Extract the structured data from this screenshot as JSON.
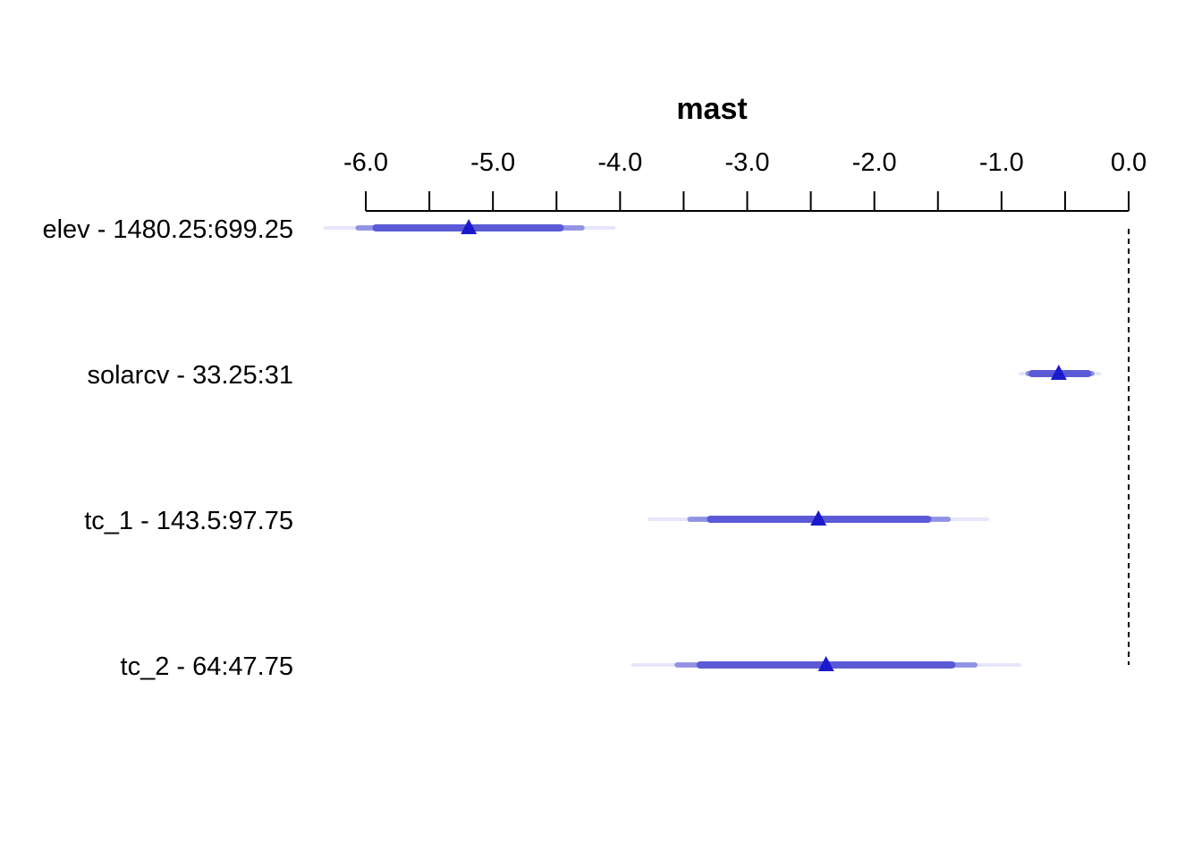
{
  "chart_data": {
    "type": "forest",
    "title": "mast",
    "x_ticks": [
      {
        "value": -6.0,
        "label": "-6.0"
      },
      {
        "value": -5.0,
        "label": "-5.0"
      },
      {
        "value": -4.0,
        "label": "-4.0"
      },
      {
        "value": -3.0,
        "label": "-3.0"
      },
      {
        "value": -2.0,
        "label": "-2.0"
      },
      {
        "value": -1.0,
        "label": "-1.0"
      },
      {
        "value": 0.0,
        "label": "0.0"
      }
    ],
    "x_minor_ticks": [
      -5.5,
      -4.5,
      -3.5,
      -2.5,
      -1.5,
      -0.5
    ],
    "xlim": [
      -6.0,
      0.0
    ],
    "reference_line": 0.0,
    "point_color": "#1a1acc",
    "interval_color": "#5a5ad6",
    "rows": [
      {
        "label": "elev - 1480.25:699.25",
        "estimate": -5.19,
        "inner": [
          -5.92,
          -4.47
        ],
        "mid": [
          -6.06,
          -4.3
        ],
        "outer": [
          -6.32,
          -4.05
        ]
      },
      {
        "label": "solarcv - 33.25:31",
        "estimate": -0.55,
        "inner": [
          -0.76,
          -0.32
        ],
        "mid": [
          -0.79,
          -0.29
        ],
        "outer": [
          -0.85,
          -0.23
        ]
      },
      {
        "label": "tc_1 - 143.5:97.75",
        "estimate": -2.44,
        "inner": [
          -3.29,
          -1.58
        ],
        "mid": [
          -3.45,
          -1.42
        ],
        "outer": [
          -3.77,
          -1.11
        ]
      },
      {
        "label": "tc_2 - 64:47.75",
        "estimate": -2.38,
        "inner": [
          -3.37,
          -1.39
        ],
        "mid": [
          -3.55,
          -1.21
        ],
        "outer": [
          -3.9,
          -0.86
        ]
      }
    ]
  }
}
